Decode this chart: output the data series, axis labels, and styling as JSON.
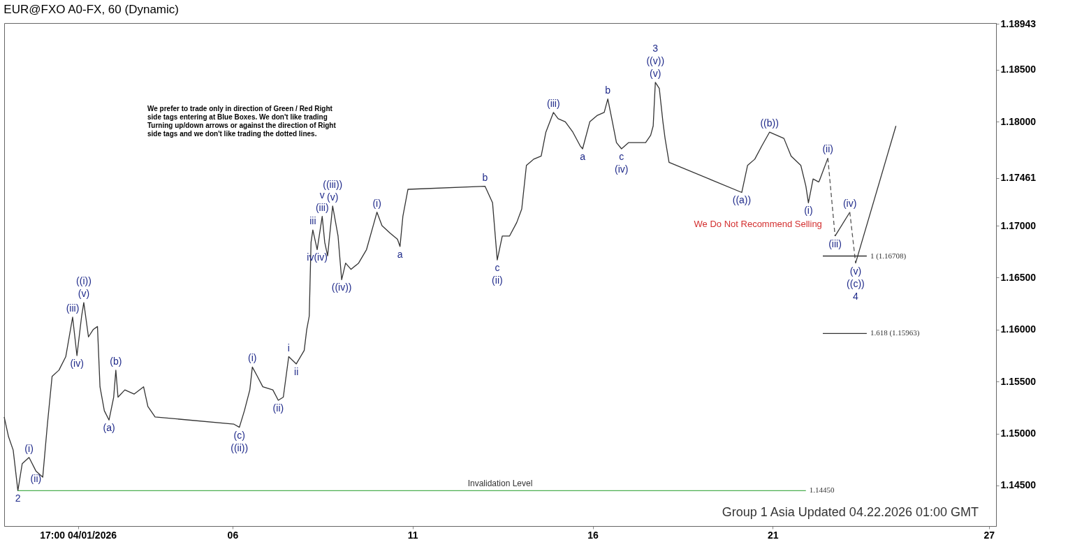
{
  "chart_data": {
    "type": "line",
    "title": "EUR@FXO A0-FX, 60 (Dynamic)",
    "xlim": [
      -0.34,
      27.2
    ],
    "ylim": [
      1.1411,
      1.1895
    ],
    "xticks": [
      {
        "value": 1.708,
        "label": "17:00 04/01/2026"
      },
      {
        "value": 6,
        "label": "06"
      },
      11,
      16,
      21,
      27
    ],
    "yticks": [
      {
        "value": 1.145,
        "label": "1.14500"
      },
      {
        "value": 1.15,
        "label": "1.15000"
      },
      {
        "value": 1.155,
        "label": "1.15500"
      },
      {
        "value": 1.16,
        "label": "1.16000"
      },
      {
        "value": 1.165,
        "label": "1.16500"
      },
      {
        "value": 1.17,
        "label": "1.17000"
      },
      {
        "value": 1.17461,
        "label": "1.17461"
      },
      {
        "value": 1.18,
        "label": "1.18000"
      },
      {
        "value": 1.185,
        "label": "1.18500"
      },
      {
        "value": 1.18943,
        "label": "1.18943"
      }
    ],
    "grid": false,
    "series": [
      {
        "color": "#333333",
        "line_style": "solid",
        "x": [
          -0.34,
          -0.22,
          -0.09,
          0.04,
          0.16,
          0.35,
          0.54,
          0.73,
          0.86,
          0.99,
          1.18,
          1.37,
          1.56,
          1.68,
          1.81,
          1.87,
          2.0,
          2.13,
          2.25,
          2.32,
          2.44,
          2.57,
          2.7,
          2.76,
          2.82,
          3.01,
          3.27,
          3.53,
          3.65,
          3.85,
          6.04,
          6.19,
          6.33,
          6.48,
          6.55,
          6.69,
          6.84,
          7.12,
          7.27,
          7.41,
          7.56,
          7.77,
          7.99,
          8.06,
          8.13,
          8.18,
          8.23,
          8.35,
          8.49,
          8.56,
          8.64,
          8.78,
          8.93,
          9.03,
          9.14,
          9.29,
          9.5,
          9.72,
          9.93,
          10.01,
          10.15,
          10.37,
          10.58,
          10.65,
          10.73,
          10.87,
          13.01,
          13.22,
          13.35,
          13.49,
          13.69,
          13.89,
          14.03,
          14.16,
          14.36,
          14.57,
          14.7,
          14.91,
          15.04,
          15.24,
          15.45,
          15.65,
          15.72,
          15.92,
          16.12,
          16.32,
          16.42,
          16.53,
          16.66,
          16.8,
          17.0,
          17.2,
          17.47,
          17.61,
          17.68,
          17.74,
          17.85,
          17.95,
          18.01,
          18.12,
          20.14,
          20.3,
          20.5,
          20.7,
          20.91,
          21.11,
          21.31,
          21.51,
          21.78,
          21.92,
          21.99,
          22.12,
          22.28
        ],
        "values": [
          1.1516,
          1.1497,
          1.1484,
          1.1445,
          1.1471,
          1.1477,
          1.1464,
          1.1458,
          1.1509,
          1.1555,
          1.1561,
          1.1574,
          1.1612,
          1.1575,
          1.1613,
          1.1626,
          1.1593,
          1.16,
          1.1603,
          1.1545,
          1.1522,
          1.1513,
          1.1535,
          1.1561,
          1.1535,
          1.1542,
          1.1538,
          1.1545,
          1.1526,
          1.1516,
          1.1509,
          1.1506,
          1.1522,
          1.1542,
          1.1564,
          1.1555,
          1.1545,
          1.1542,
          1.1532,
          1.1535,
          1.1574,
          1.1567,
          1.158,
          1.16,
          1.1613,
          1.1684,
          1.1696,
          1.1677,
          1.1709,
          1.1684,
          1.1671,
          1.1719,
          1.169,
          1.1648,
          1.1664,
          1.1658,
          1.1664,
          1.1677,
          1.1703,
          1.1713,
          1.17,
          1.1693,
          1.1687,
          1.168,
          1.1709,
          1.1735,
          1.1738,
          1.1722,
          1.1667,
          1.169,
          1.169,
          1.1703,
          1.1716,
          1.1758,
          1.1764,
          1.1767,
          1.179,
          1.1809,
          1.1803,
          1.18,
          1.179,
          1.1777,
          1.1774,
          1.18,
          1.1806,
          1.1809,
          1.1822,
          1.1803,
          1.178,
          1.1774,
          1.178,
          1.178,
          1.178,
          1.1787,
          1.1796,
          1.1838,
          1.1832,
          1.18,
          1.1784,
          1.1761,
          1.1732,
          1.1758,
          1.1764,
          1.1777,
          1.179,
          1.1787,
          1.1784,
          1.1767,
          1.1758,
          1.1738,
          1.1722,
          1.1745,
          1.1742
        ]
      },
      {
        "color": "#333333",
        "line_style": "solid",
        "x": [
          22.28,
          22.53
        ],
        "values": [
          1.1742,
          1.1765
        ]
      },
      {
        "color": "#555555",
        "line_style": "dashed",
        "x": [
          22.53,
          22.73
        ],
        "values": [
          1.1765,
          1.169
        ]
      },
      {
        "color": "#333333",
        "line_style": "solid",
        "x": [
          22.73,
          23.14
        ],
        "values": [
          1.169,
          1.1713
        ]
      },
      {
        "color": "#555555",
        "line_style": "dashed",
        "x": [
          23.14,
          23.3
        ],
        "values": [
          1.1713,
          1.1664
        ]
      },
      {
        "color": "#333333",
        "line_style": "solid",
        "x": [
          23.3,
          24.42
        ],
        "values": [
          1.1664,
          1.1796
        ]
      },
      {
        "name": "1 (1.16708)",
        "color": "#333333",
        "line_style": "solid",
        "x": [
          22.39,
          23.61
        ],
        "values": [
          1.16708,
          1.16708
        ]
      },
      {
        "name": "1.618 (1.15963)",
        "color": "#333333",
        "line_style": "solid",
        "x": [
          22.39,
          23.61
        ],
        "values": [
          1.15963,
          1.15963
        ]
      },
      {
        "name": "1.14450",
        "color": "#4caf50",
        "line_style": "solid",
        "x": [
          0.04,
          21.92
        ],
        "values": [
          1.1445,
          1.1445
        ]
      }
    ],
    "annotations": [
      "We prefer to trade only in direction of Green / Red Right side tags entering at Blue Boxes. We don't like trading Turning up/down arrows or against the direction of Right side tags and we don't like trading the dotted lines.",
      "Group 1 Asia Updated 04.22.2026 01:00 GMT",
      "Invalidation Level",
      "We Do Not Recommend Selling",
      {
        "text": "2",
        "x": 0.04,
        "y": 1.1445
      },
      {
        "text": "(i)",
        "x": 0.35,
        "y": 1.1477
      },
      {
        "text": "(ii)",
        "x": 0.54,
        "y": 1.1464
      },
      {
        "text": "(iii)",
        "x": 1.56,
        "y": 1.1612
      },
      {
        "text": "(iv)",
        "x": 1.68,
        "y": 1.1575
      },
      {
        "text": "(v)",
        "x": 1.87,
        "y": 1.1626
      },
      {
        "text": "((i))",
        "x": 1.87,
        "y": 1.1626
      },
      {
        "text": "(a)",
        "x": 2.57,
        "y": 1.1513
      },
      {
        "text": "(b)",
        "x": 2.76,
        "y": 1.1561
      },
      {
        "text": "(c)",
        "x": 6.19,
        "y": 1.1506
      },
      {
        "text": "((ii))",
        "x": 6.19,
        "y": 1.1506
      },
      {
        "text": "(i)",
        "x": 6.55,
        "y": 1.1564
      },
      {
        "text": "(ii)",
        "x": 7.27,
        "y": 1.1532
      },
      {
        "text": "i",
        "x": 7.56,
        "y": 1.1574
      },
      {
        "text": "ii",
        "x": 7.77,
        "y": 1.1567
      },
      {
        "text": "iii",
        "x": 8.23,
        "y": 1.1696
      },
      {
        "text": "iv(iv)",
        "x": 8.35,
        "y": 1.1677
      },
      {
        "text": "(iii)",
        "x": 8.49,
        "y": 1.1709
      },
      {
        "text": "v",
        "x": 8.49,
        "y": 1.1709
      },
      {
        "text": "(v)",
        "x": 8.78,
        "y": 1.1719
      },
      {
        "text": "((iii))",
        "x": 8.78,
        "y": 1.1719
      },
      {
        "text": "((iv))",
        "x": 9.03,
        "y": 1.1648
      },
      {
        "text": "(i)",
        "x": 10.01,
        "y": 1.1713
      },
      {
        "text": "a",
        "x": 10.65,
        "y": 1.168
      },
      {
        "text": "b",
        "x": 13.01,
        "y": 1.1738
      },
      {
        "text": "c",
        "x": 13.35,
        "y": 1.1667
      },
      {
        "text": "(ii)",
        "x": 13.35,
        "y": 1.1667
      },
      {
        "text": "(iii)",
        "x": 14.91,
        "y": 1.1809
      },
      {
        "text": "a",
        "x": 15.72,
        "y": 1.1774
      },
      {
        "text": "b",
        "x": 16.42,
        "y": 1.1822
      },
      {
        "text": "c",
        "x": 16.8,
        "y": 1.1774
      },
      {
        "text": "(iv)",
        "x": 16.8,
        "y": 1.1774
      },
      {
        "text": "(v)",
        "x": 17.74,
        "y": 1.1838
      },
      {
        "text": "((v))",
        "x": 17.74,
        "y": 1.1838
      },
      {
        "text": "3",
        "x": 17.74,
        "y": 1.1838
      },
      {
        "text": "((a))",
        "x": 20.14,
        "y": 1.1732
      },
      {
        "text": "((b))",
        "x": 20.91,
        "y": 1.179
      },
      {
        "text": "(i)",
        "x": 21.99,
        "y": 1.1722
      },
      {
        "text": "(ii)",
        "x": 22.53,
        "y": 1.1765
      },
      {
        "text": "(iii)",
        "x": 22.73,
        "y": 1.169
      },
      {
        "text": "(iv)",
        "x": 23.14,
        "y": 1.1713
      },
      {
        "text": "(v)",
        "x": 23.3,
        "y": 1.1664
      },
      {
        "text": "((c))",
        "x": 23.3,
        "y": 1.1664
      },
      {
        "text": "4",
        "x": 23.3,
        "y": 1.1664
      }
    ]
  }
}
